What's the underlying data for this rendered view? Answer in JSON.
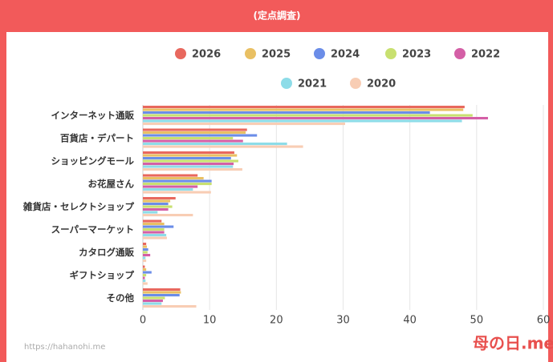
{
  "subtitle": "(定点調査)",
  "footer": {
    "url": "https://hahanohi.me",
    "logo": "母の日.me"
  },
  "chart_data": {
    "type": "hbar",
    "categories": [
      "インターネット通販",
      "百貨店・デパート",
      "ショッピングモール",
      "お花屋さん",
      "雑貨店・セレクトショップ",
      "スーパーマーケット",
      "カタログ通販",
      "ギフトショップ",
      "その他"
    ],
    "series": [
      {
        "name": "2026",
        "color": "#e8685e",
        "values": [
          48.2,
          15.6,
          13.7,
          8.2,
          4.9,
          2.8,
          0.5,
          0.3,
          5.6
        ]
      },
      {
        "name": "2025",
        "color": "#e9c063",
        "values": [
          48.0,
          15.4,
          14.1,
          9.1,
          4.1,
          3.2,
          0.6,
          0.5,
          5.7
        ]
      },
      {
        "name": "2024",
        "color": "#6b8de8",
        "values": [
          43.0,
          17.1,
          13.2,
          10.3,
          3.8,
          4.6,
          0.8,
          1.3,
          5.5
        ]
      },
      {
        "name": "2023",
        "color": "#c8e070",
        "values": [
          49.4,
          13.5,
          14.3,
          10.3,
          4.4,
          3.2,
          0.7,
          0.5,
          3.3
        ]
      },
      {
        "name": "2022",
        "color": "#d45fa6",
        "values": [
          51.7,
          15.0,
          13.6,
          8.2,
          3.8,
          3.2,
          1.1,
          0.3,
          3.0
        ]
      },
      {
        "name": "2021",
        "color": "#8ddce8",
        "values": [
          47.8,
          21.6,
          13.5,
          7.5,
          2.2,
          3.5,
          0.4,
          0.4,
          2.8
        ]
      },
      {
        "name": "2020",
        "color": "#f8cdb4",
        "values": [
          30.3,
          24.0,
          14.9,
          10.2,
          7.5,
          3.6,
          0.5,
          0.7,
          8.0
        ]
      }
    ],
    "xlim": [
      0,
      60
    ],
    "xticks": [
      0,
      10,
      20,
      30,
      40,
      50,
      60
    ],
    "grid": true
  }
}
